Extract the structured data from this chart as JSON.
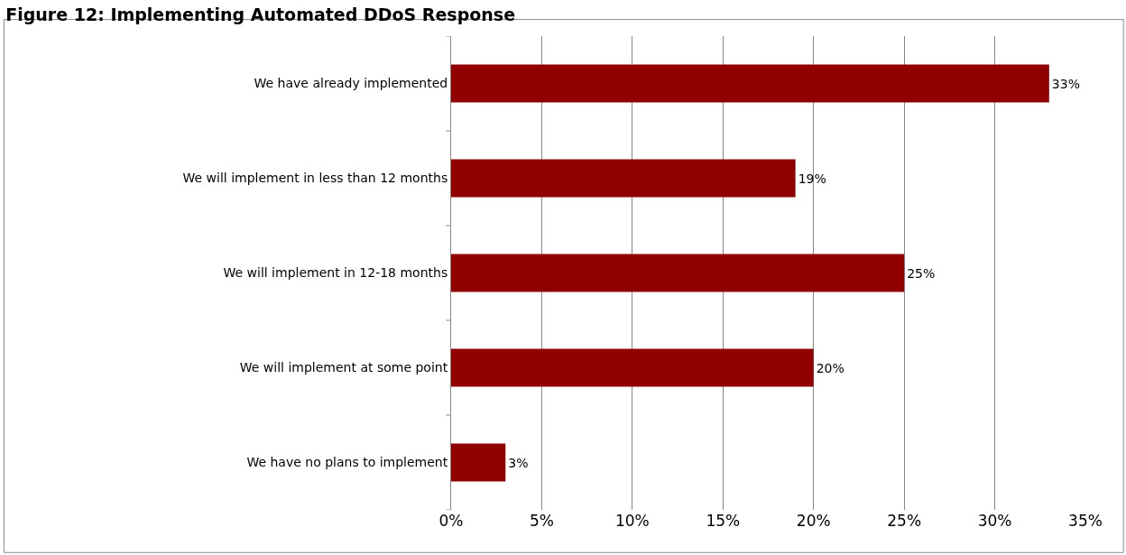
{
  "chart_data": {
    "type": "bar",
    "orientation": "horizontal",
    "title": "Figure 12: Implementing Automated DDoS Response",
    "categories": [
      "We have already implemented",
      "We will implement in less than 12 months",
      "We will implement in 12-18 months",
      "We will implement at some point",
      "We have no plans to implement"
    ],
    "values": [
      33,
      19,
      25,
      20,
      3
    ],
    "value_labels": [
      "33%",
      "19%",
      "25%",
      "20%",
      "3%"
    ],
    "color": "#900000",
    "xlim": [
      0,
      35
    ],
    "xticks": [
      {
        "value": 0,
        "label": "0%"
      },
      {
        "value": 5,
        "label": "5%"
      },
      {
        "value": 10,
        "label": "10%"
      },
      {
        "value": 15,
        "label": "15%"
      },
      {
        "value": 20,
        "label": "20%"
      },
      {
        "value": 25,
        "label": "25%"
      },
      {
        "value": 30,
        "label": "30%"
      },
      {
        "value": 35,
        "label": "35%"
      }
    ],
    "grid": "x"
  }
}
